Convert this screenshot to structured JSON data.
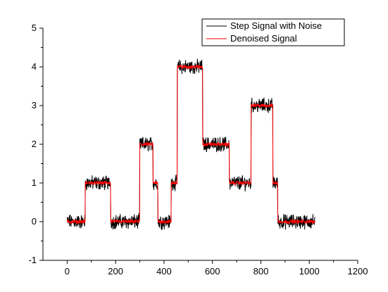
{
  "chart_data": {
    "type": "line",
    "title": "",
    "xlabel": "",
    "ylabel": "",
    "xlim": [
      -100,
      1200
    ],
    "ylim": [
      -1,
      5
    ],
    "x_ticks": [
      0,
      200,
      400,
      600,
      800,
      1000,
      1200
    ],
    "y_ticks": [
      -1,
      0,
      1,
      2,
      3,
      4,
      5
    ],
    "x_tick_labels": [
      "0",
      "200",
      "400",
      "600",
      "800",
      "1000",
      "1200"
    ],
    "y_tick_labels": [
      "-1",
      "0",
      "1",
      "2",
      "3",
      "4",
      "5"
    ],
    "grid": false,
    "legend": "top-right",
    "segments": [
      {
        "x_start": 0,
        "x_end": 75,
        "level": 0
      },
      {
        "x_start": 75,
        "x_end": 180,
        "level": 1
      },
      {
        "x_start": 180,
        "x_end": 300,
        "level": 0
      },
      {
        "x_start": 300,
        "x_end": 355,
        "level": 2
      },
      {
        "x_start": 355,
        "x_end": 375,
        "level": 1
      },
      {
        "x_start": 375,
        "x_end": 430,
        "level": 0
      },
      {
        "x_start": 430,
        "x_end": 455,
        "level": 1
      },
      {
        "x_start": 455,
        "x_end": 560,
        "level": 4
      },
      {
        "x_start": 560,
        "x_end": 670,
        "level": 2
      },
      {
        "x_start": 670,
        "x_end": 760,
        "level": 1
      },
      {
        "x_start": 760,
        "x_end": 850,
        "level": 3
      },
      {
        "x_start": 850,
        "x_end": 870,
        "level": 1
      },
      {
        "x_start": 870,
        "x_end": 1023,
        "level": 0
      }
    ],
    "series": [
      {
        "name": "Step Signal with Noise",
        "color": "#000000",
        "noise_amplitude": 0.15
      },
      {
        "name": "Denoised Signal",
        "color": "#ff0000",
        "noise_amplitude": 0.04
      }
    ]
  }
}
